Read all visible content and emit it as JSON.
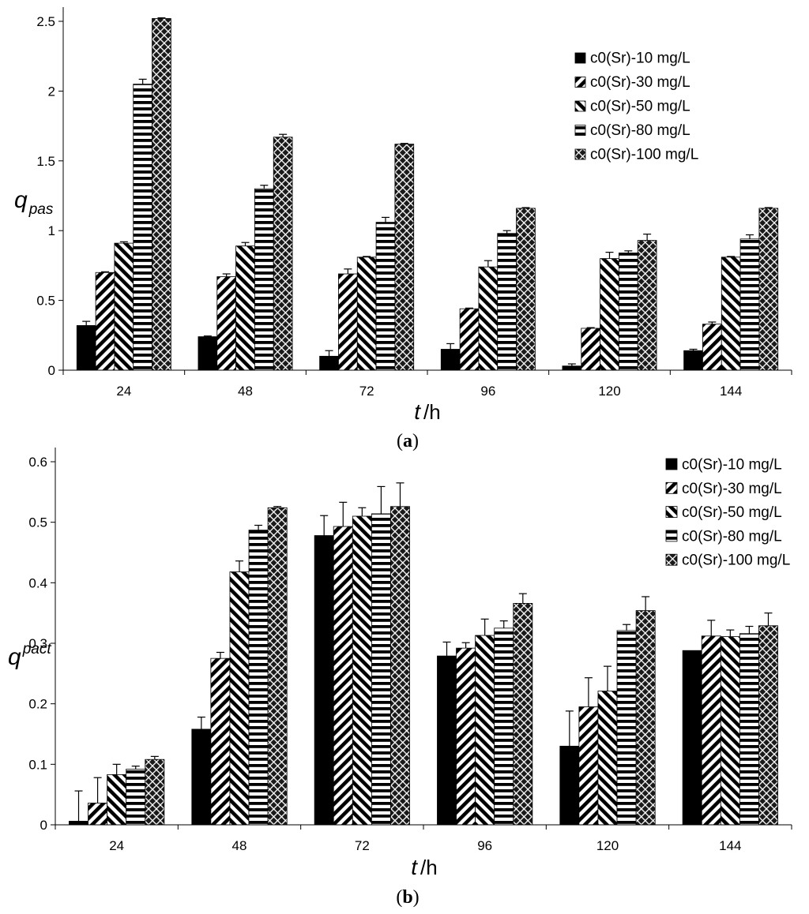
{
  "chart_data": [
    {
      "type": "bar",
      "panel_label": {
        "open": "(",
        "letter": "a",
        "close": ")"
      },
      "ylabel": {
        "main": "q",
        "sub": "pas"
      },
      "xlabel": {
        "main": "t",
        "unit": "/h"
      },
      "categories": [
        "24",
        "48",
        "72",
        "96",
        "120",
        "144"
      ],
      "ylim": [
        0,
        2.5
      ],
      "yticks": [
        0,
        0.5,
        1,
        1.5,
        2,
        2.5
      ],
      "ytick_labels": [
        "0",
        "0.5",
        "1",
        "1.5",
        "2",
        "2.5"
      ],
      "legend_position": "top-right",
      "series": [
        {
          "name": "c0(Sr)-10 mg/L",
          "pattern": "solid",
          "values": [
            0.32,
            0.24,
            0.1,
            0.15,
            0.03,
            0.14
          ],
          "errors": [
            0.03,
            0.005,
            0.04,
            0.04,
            0.015,
            0.01
          ]
        },
        {
          "name": "c0(Sr)-30 mg/L",
          "pattern": "diag-down",
          "values": [
            0.7,
            0.67,
            0.69,
            0.44,
            0.3,
            0.33
          ],
          "errors": [
            0.005,
            0.02,
            0.035,
            0.005,
            0.005,
            0.015
          ]
        },
        {
          "name": "c0(Sr)-50 mg/L",
          "pattern": "diag-up",
          "values": [
            0.91,
            0.89,
            0.81,
            0.74,
            0.8,
            0.81
          ],
          "errors": [
            0.01,
            0.025,
            0.005,
            0.045,
            0.045,
            0.005
          ]
        },
        {
          "name": "c0(Sr)-80 mg/L",
          "pattern": "horizontal",
          "values": [
            2.05,
            1.3,
            1.06,
            0.98,
            0.84,
            0.94
          ],
          "errors": [
            0.035,
            0.025,
            0.035,
            0.02,
            0.015,
            0.03
          ]
        },
        {
          "name": "c0(Sr)-100 mg/L",
          "pattern": "crosshatch",
          "values": [
            2.52,
            1.67,
            1.62,
            1.16,
            0.93,
            1.16
          ],
          "errors": [
            0.005,
            0.02,
            0.005,
            0.005,
            0.045,
            0.005
          ]
        }
      ]
    },
    {
      "type": "bar",
      "panel_label": {
        "open": "(",
        "letter": "b",
        "close": ")"
      },
      "ylabel": {
        "main": "q",
        "sub": "pact"
      },
      "xlabel": {
        "main": "t",
        "unit": "/h"
      },
      "categories": [
        "24",
        "48",
        "72",
        "96",
        "120",
        "144"
      ],
      "ylim": [
        0,
        0.6
      ],
      "yticks": [
        0,
        0.1,
        0.2,
        0.3,
        0.4,
        0.5,
        0.6
      ],
      "ytick_labels": [
        "0",
        "0.1",
        "0.2",
        "0.3",
        "0.4",
        "0.5",
        "0.6"
      ],
      "legend_position": "top-right",
      "series": [
        {
          "name": "c0(Sr)-10 mg/L",
          "pattern": "solid",
          "values": [
            0.006,
            0.158,
            0.478,
            0.279,
            0.13,
            0.288
          ],
          "errors": [
            0.05,
            0.02,
            0.033,
            0.023,
            0.058,
            0.0
          ]
        },
        {
          "name": "c0(Sr)-30 mg/L",
          "pattern": "diag-down",
          "values": [
            0.036,
            0.275,
            0.493,
            0.292,
            0.195,
            0.312
          ],
          "errors": [
            0.042,
            0.01,
            0.04,
            0.009,
            0.048,
            0.026
          ]
        },
        {
          "name": "c0(Sr)-50 mg/L",
          "pattern": "diag-up",
          "values": [
            0.083,
            0.418,
            0.51,
            0.313,
            0.221,
            0.311
          ],
          "errors": [
            0.017,
            0.018,
            0.014,
            0.027,
            0.041,
            0.011
          ]
        },
        {
          "name": "c0(Sr)-80 mg/L",
          "pattern": "horizontal",
          "values": [
            0.092,
            0.487,
            0.514,
            0.325,
            0.321,
            0.316
          ],
          "errors": [
            0.005,
            0.008,
            0.045,
            0.012,
            0.01,
            0.012
          ]
        },
        {
          "name": "c0(Sr)-100 mg/L",
          "pattern": "crosshatch",
          "values": [
            0.108,
            0.524,
            0.526,
            0.366,
            0.354,
            0.329
          ],
          "errors": [
            0.005,
            0.002,
            0.039,
            0.016,
            0.023,
            0.021
          ]
        }
      ]
    }
  ]
}
